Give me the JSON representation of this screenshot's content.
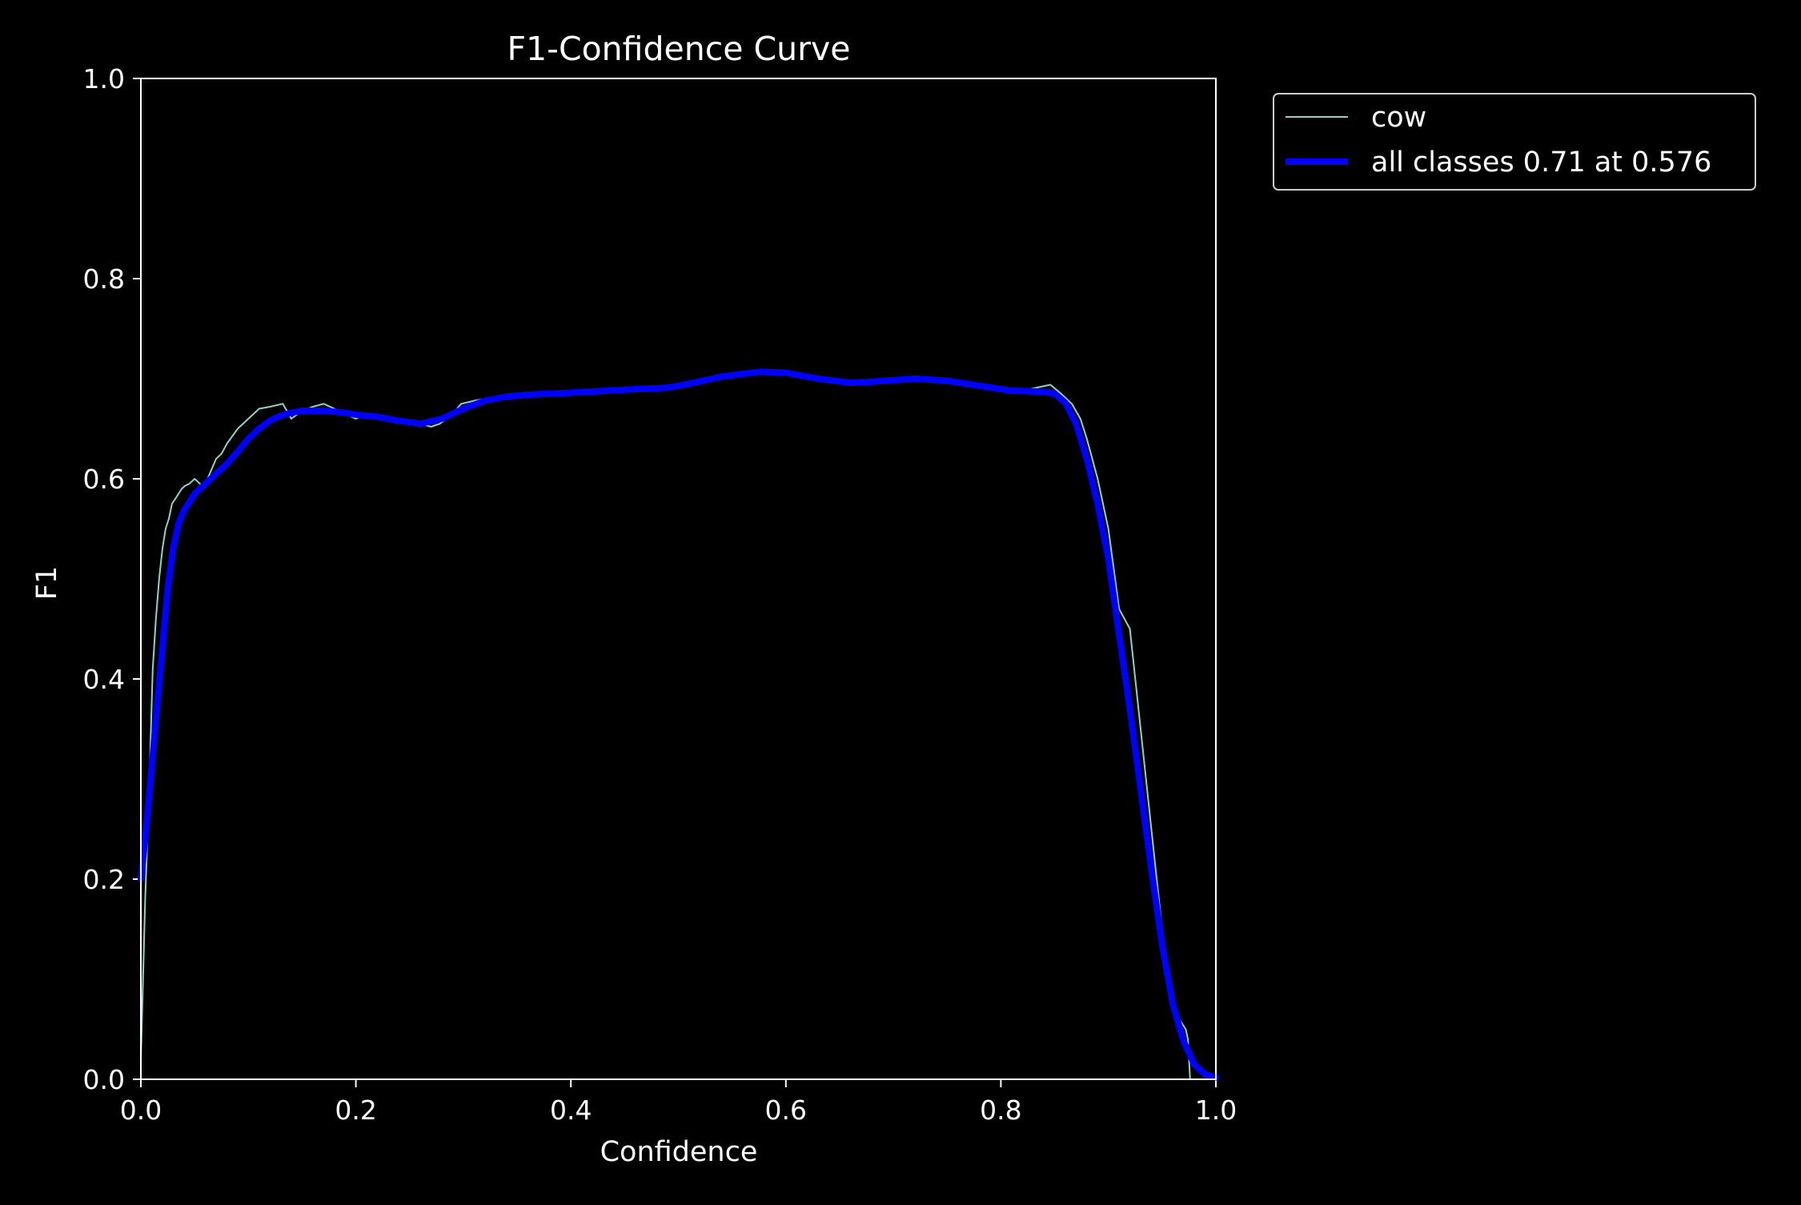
{
  "chart_data": {
    "type": "line",
    "title": "F1-Confidence Curve",
    "xlabel": "Confidence",
    "ylabel": "F1",
    "xlim": [
      0.0,
      1.0
    ],
    "ylim": [
      0.0,
      1.0
    ],
    "x_ticks": [
      "0.0",
      "0.2",
      "0.4",
      "0.6",
      "0.8",
      "1.0"
    ],
    "y_ticks": [
      "0.0",
      "0.2",
      "0.4",
      "0.6",
      "0.8",
      "1.0"
    ],
    "grid": false,
    "legend_position": "outside-top-right",
    "colors": {
      "background": "#000000",
      "foreground": "#ffffff",
      "cow": "#8dd3c7",
      "all_classes": "#0000ff"
    },
    "series": [
      {
        "name": "cow",
        "color": "#8dd3c7",
        "x": [
          0.0,
          0.004,
          0.008,
          0.011,
          0.014,
          0.017,
          0.02,
          0.023,
          0.026,
          0.029,
          0.032,
          0.035,
          0.038,
          0.041,
          0.045,
          0.05,
          0.055,
          0.058,
          0.062,
          0.066,
          0.07,
          0.075,
          0.08,
          0.09,
          0.1,
          0.11,
          0.12,
          0.132,
          0.14,
          0.15,
          0.16,
          0.17,
          0.18,
          0.19,
          0.2,
          0.21,
          0.22,
          0.23,
          0.24,
          0.25,
          0.26,
          0.27,
          0.278,
          0.29,
          0.298,
          0.31,
          0.32,
          0.34,
          0.36,
          0.4,
          0.45,
          0.49,
          0.51,
          0.54,
          0.576,
          0.6,
          0.63,
          0.66,
          0.7,
          0.74,
          0.78,
          0.8,
          0.82,
          0.846,
          0.856,
          0.866,
          0.874,
          0.88,
          0.89,
          0.9,
          0.91,
          0.92,
          0.925,
          0.93,
          0.94,
          0.95,
          0.96,
          0.966,
          0.972,
          0.974,
          0.976,
          0.978,
          0.985,
          0.99,
          1.0
        ],
        "y": [
          0.02,
          0.18,
          0.3,
          0.41,
          0.46,
          0.5,
          0.53,
          0.55,
          0.56,
          0.575,
          0.58,
          0.585,
          0.59,
          0.593,
          0.595,
          0.6,
          0.595,
          0.59,
          0.6,
          0.61,
          0.62,
          0.625,
          0.635,
          0.65,
          0.66,
          0.67,
          0.672,
          0.675,
          0.66,
          0.668,
          0.672,
          0.675,
          0.67,
          0.665,
          0.66,
          0.665,
          0.663,
          0.662,
          0.66,
          0.657,
          0.655,
          0.652,
          0.655,
          0.665,
          0.675,
          0.678,
          0.68,
          0.683,
          0.685,
          0.688,
          0.69,
          0.692,
          0.695,
          0.7,
          0.705,
          0.705,
          0.7,
          0.697,
          0.7,
          0.698,
          0.693,
          0.69,
          0.688,
          0.694,
          0.685,
          0.675,
          0.66,
          0.64,
          0.6,
          0.55,
          0.47,
          0.45,
          0.4,
          0.35,
          0.25,
          0.15,
          0.08,
          0.06,
          0.05,
          0.04,
          0.0,
          0.0,
          0.0,
          0.0,
          0.0
        ]
      },
      {
        "name": "all classes 0.71 at 0.576",
        "color": "#0000ff",
        "x": [
          0.0,
          0.005,
          0.01,
          0.015,
          0.02,
          0.025,
          0.03,
          0.035,
          0.04,
          0.05,
          0.06,
          0.07,
          0.08,
          0.09,
          0.1,
          0.11,
          0.12,
          0.13,
          0.14,
          0.15,
          0.17,
          0.19,
          0.2,
          0.22,
          0.24,
          0.26,
          0.28,
          0.3,
          0.32,
          0.34,
          0.36,
          0.4,
          0.45,
          0.49,
          0.51,
          0.54,
          0.576,
          0.6,
          0.63,
          0.66,
          0.68,
          0.72,
          0.75,
          0.78,
          0.81,
          0.84,
          0.85,
          0.86,
          0.87,
          0.88,
          0.89,
          0.9,
          0.91,
          0.92,
          0.93,
          0.94,
          0.95,
          0.96,
          0.97,
          0.98,
          0.99,
          1.0
        ],
        "y": [
          0.2,
          0.25,
          0.31,
          0.37,
          0.43,
          0.49,
          0.53,
          0.555,
          0.568,
          0.585,
          0.595,
          0.605,
          0.615,
          0.627,
          0.64,
          0.65,
          0.658,
          0.663,
          0.666,
          0.668,
          0.668,
          0.666,
          0.664,
          0.662,
          0.658,
          0.655,
          0.66,
          0.67,
          0.678,
          0.682,
          0.684,
          0.686,
          0.689,
          0.691,
          0.695,
          0.702,
          0.707,
          0.706,
          0.7,
          0.696,
          0.697,
          0.7,
          0.698,
          0.693,
          0.688,
          0.687,
          0.685,
          0.676,
          0.655,
          0.62,
          0.575,
          0.52,
          0.445,
          0.37,
          0.29,
          0.21,
          0.135,
          0.075,
          0.038,
          0.015,
          0.005,
          0.002
        ]
      }
    ]
  }
}
